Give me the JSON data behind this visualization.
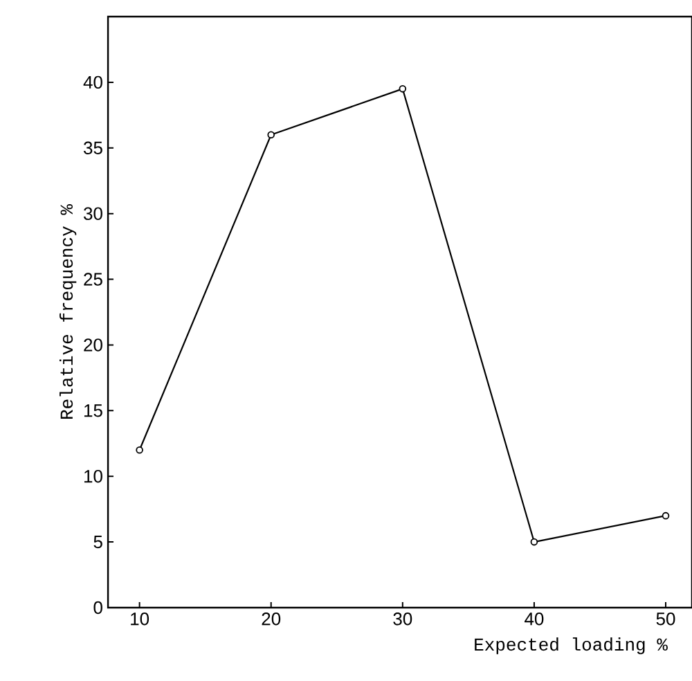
{
  "chart_data": {
    "type": "line",
    "xlabel": "Expected loading %",
    "ylabel": "Relative frequency %",
    "x": [
      10,
      20,
      30,
      40,
      50
    ],
    "series": [
      {
        "color": "#000000",
        "values": [
          12,
          36,
          39.5,
          5,
          7
        ]
      }
    ],
    "xlim": [
      7.6,
      52
    ],
    "ylim": [
      0,
      45
    ],
    "xticks": [
      10,
      20,
      30,
      40,
      50
    ],
    "yticks": [
      0,
      5,
      10,
      15,
      20,
      25,
      30,
      35,
      40
    ],
    "marker": "circle",
    "line_style": "solid"
  }
}
